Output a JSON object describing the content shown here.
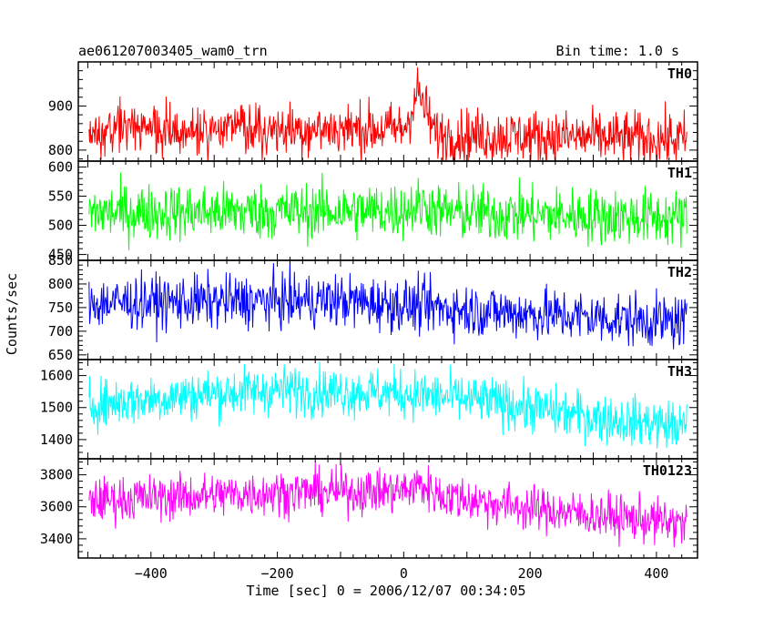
{
  "header": {
    "source": "ae061207003405_wam0_trn",
    "bin_time": "Bin time: 1.0 s"
  },
  "chart_data": {
    "type": "line",
    "xlabel": "Time [sec] 0 = 2006/12/07 00:34:05",
    "ylabel": "Counts/sec",
    "xlim": [
      -515,
      465
    ],
    "x_ticks": [
      -400,
      -200,
      0,
      200,
      400
    ],
    "x_range": [
      -498,
      448
    ],
    "panels": [
      {
        "name": "TH0",
        "color": "#ff0000",
        "ylim": [
          775,
          1000
        ],
        "y_ticks": [
          800,
          900
        ],
        "mean": 845,
        "noise": 30,
        "trend": [
          [
            -498,
            845
          ],
          [
            -100,
            848
          ],
          [
            0,
            848
          ],
          [
            10,
            880
          ],
          [
            22,
            935
          ],
          [
            35,
            890
          ],
          [
            50,
            835
          ],
          [
            448,
            825
          ]
        ]
      },
      {
        "name": "TH1",
        "color": "#00ff00",
        "ylim": [
          440,
          610
        ],
        "y_ticks": [
          450,
          500,
          550,
          600
        ],
        "mean": 522,
        "noise": 24,
        "trend": [
          [
            -498,
            522
          ],
          [
            0,
            525
          ],
          [
            30,
            535
          ],
          [
            60,
            522
          ],
          [
            448,
            512
          ]
        ]
      },
      {
        "name": "TH2",
        "color": "#0000ff",
        "ylim": [
          640,
          850
        ],
        "y_ticks": [
          650,
          700,
          750,
          800,
          850
        ],
        "mean": 757,
        "noise": 28,
        "trend": [
          [
            -498,
            760
          ],
          [
            -100,
            765
          ],
          [
            100,
            745
          ],
          [
            448,
            718
          ]
        ]
      },
      {
        "name": "TH3",
        "color": "#00ffff",
        "ylim": [
          1340,
          1650
        ],
        "y_ticks": [
          1400,
          1500,
          1600
        ],
        "mean": 1530,
        "noise": 38,
        "trend": [
          [
            -498,
            1510
          ],
          [
            -300,
            1545
          ],
          [
            -200,
            1555
          ],
          [
            0,
            1545
          ],
          [
            150,
            1515
          ],
          [
            300,
            1470
          ],
          [
            448,
            1440
          ]
        ]
      },
      {
        "name": "TH0123",
        "color": "#ff00ff",
        "ylim": [
          3280,
          3900
        ],
        "y_ticks": [
          3400,
          3600,
          3800
        ],
        "mean": 3650,
        "noise": 70,
        "trend": [
          [
            -498,
            3640
          ],
          [
            -200,
            3690
          ],
          [
            0,
            3700
          ],
          [
            25,
            3740
          ],
          [
            60,
            3670
          ],
          [
            200,
            3590
          ],
          [
            448,
            3490
          ]
        ]
      }
    ]
  }
}
